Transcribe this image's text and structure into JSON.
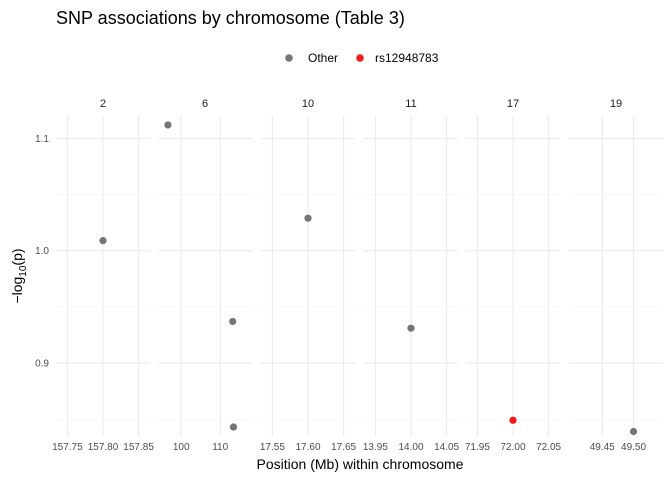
{
  "chart_data": {
    "type": "scatter",
    "title": "SNP associations by chromosome (Table 3)",
    "xlabel": "Position (Mb) within chromosome",
    "ylabel_prefix": "−log",
    "ylabel_sub": "10",
    "ylabel_suffix": "(p)",
    "ylim": [
      0.835,
      1.12
    ],
    "y_ticks": [
      0.9,
      1.0,
      1.1
    ],
    "y_tick_labels": [
      "0.9",
      "1.0",
      "1.1"
    ],
    "grid": true,
    "legend_position": "top",
    "legend": [
      {
        "label": "Other",
        "color": "#757575"
      },
      {
        "label": "rs12948783",
        "color": "#f21a1a"
      }
    ],
    "colors": {
      "Other": "#757575",
      "rs12948783": "#f21a1a"
    },
    "panels": [
      {
        "label": "2",
        "x_ticks": [
          157.75,
          157.8,
          157.85
        ],
        "x_tick_labels": [
          "157.75",
          "157.80",
          "157.85"
        ],
        "points": [
          {
            "x": 157.8,
            "y": 1.009,
            "group": "Other"
          }
        ]
      },
      {
        "label": "6",
        "x_ticks": [
          100,
          110
        ],
        "x_tick_labels": [
          "100",
          "110"
        ],
        "points": [
          {
            "x": 96.6,
            "y": 1.112,
            "group": "Other"
          },
          {
            "x": 113.2,
            "y": 0.937,
            "group": "Other"
          },
          {
            "x": 113.4,
            "y": 0.843,
            "group": "Other"
          }
        ]
      },
      {
        "label": "10",
        "x_ticks": [
          17.55,
          17.6,
          17.65
        ],
        "x_tick_labels": [
          "17.55",
          "17.60",
          "17.65"
        ],
        "points": [
          {
            "x": 17.6,
            "y": 1.029,
            "group": "Other"
          }
        ]
      },
      {
        "label": "11",
        "x_ticks": [
          13.95,
          14.0,
          14.05
        ],
        "x_tick_labels": [
          "13.95",
          "14.00",
          "14.05"
        ],
        "points": [
          {
            "x": 14.0,
            "y": 0.931,
            "group": "Other"
          }
        ]
      },
      {
        "label": "17",
        "x_ticks": [
          71.95,
          72.0,
          72.05
        ],
        "x_tick_labels": [
          "71.95",
          "72.00",
          "72.05"
        ],
        "points": [
          {
            "x": 72.0,
            "y": 0.849,
            "group": "rs12948783"
          }
        ]
      },
      {
        "label": "19",
        "x_ticks": [
          49.45,
          49.5
        ],
        "x_tick_labels": [
          "49.45",
          "49.50"
        ],
        "points": [
          {
            "x": 49.5,
            "y": 0.839,
            "group": "Other"
          }
        ]
      }
    ]
  }
}
